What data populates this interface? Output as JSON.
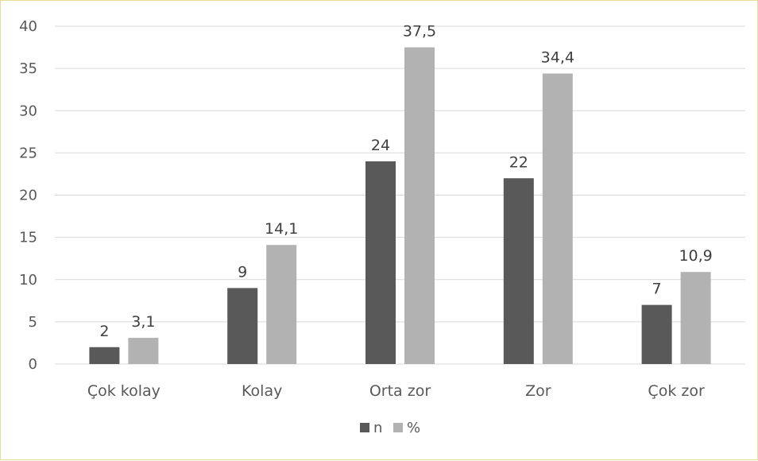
{
  "chart_data": {
    "type": "bar",
    "categories": [
      "Çok kolay",
      "Kolay",
      "Orta zor",
      "Zor",
      "Çok zor"
    ],
    "series": [
      {
        "name": "n",
        "values": [
          2,
          9,
          24,
          22,
          7
        ],
        "labels": [
          "2",
          "9",
          "24",
          "22",
          "7"
        ],
        "color": "#595959"
      },
      {
        "name": "%",
        "values": [
          3.1,
          14.1,
          37.5,
          34.4,
          10.9
        ],
        "labels": [
          "3,1",
          "14,1",
          "37,5",
          "34,4",
          "10,9"
        ],
        "color": "#b2b2b2"
      }
    ],
    "ylim": [
      0,
      40
    ],
    "yticks": [
      0,
      5,
      10,
      15,
      20,
      25,
      30,
      35,
      40
    ],
    "grid": true,
    "legend_position": "bottom",
    "gridline_color": "#d9d9d9",
    "frame_border_color": "#e8dc9a"
  }
}
